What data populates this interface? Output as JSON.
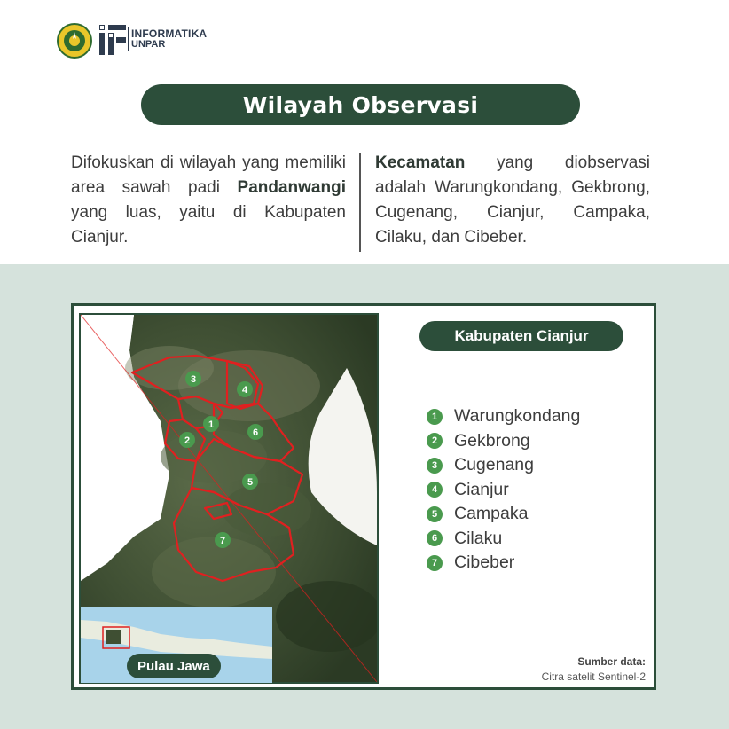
{
  "header": {
    "logo_line1": "INFORMATIKA",
    "logo_line2": "UNPAR",
    "title": "Wilayah Observasi"
  },
  "intro": {
    "left": {
      "text1": "Difokuskan di wilayah yang memiliki area sawah padi ",
      "bold": "Pandanwangi",
      "text2": " yang luas, yaitu di Kabupaten Cianjur."
    },
    "right": {
      "bold": "Kecamatan",
      "text": " yang diobservasi adalah Warungkondang, Gekbrong, Cugenang, Cianjur, Campaka, Cilaku, dan Cibeber."
    }
  },
  "map": {
    "region_label": "Kabupaten Cianjur",
    "inset_label": "Pulau Jawa",
    "markers": [
      "1",
      "2",
      "3",
      "4",
      "5",
      "6",
      "7"
    ],
    "colors": {
      "boundary": "#e02020",
      "marker": "#4a9a4e",
      "pill": "#2c4e3a"
    }
  },
  "legend": [
    {
      "num": "1",
      "name": "Warungkondang"
    },
    {
      "num": "2",
      "name": "Gekbrong"
    },
    {
      "num": "3",
      "name": "Cugenang"
    },
    {
      "num": "4",
      "name": "Cianjur"
    },
    {
      "num": "5",
      "name": "Campaka"
    },
    {
      "num": "6",
      "name": "Cilaku"
    },
    {
      "num": "7",
      "name": "Cibeber"
    }
  ],
  "source": {
    "label": "Sumber data:",
    "value": "Citra satelit Sentinel-2"
  }
}
